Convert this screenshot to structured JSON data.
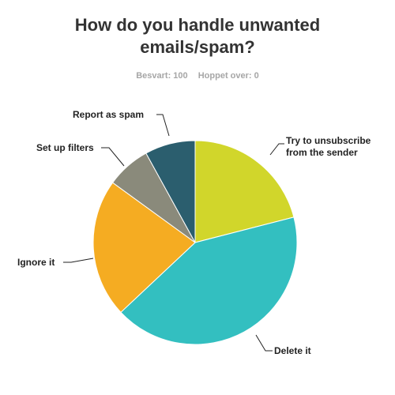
{
  "header": {
    "title": "How do you handle unwanted emails/spam?",
    "answered_label": "Besvart: 100",
    "skipped_label": "Hoppet over: 0"
  },
  "chart_data": {
    "type": "pie",
    "title": "How do you handle unwanted emails/spam?",
    "start": "12 o'clock, clockwise",
    "slices": [
      {
        "label": "Try to unsubscribe from the sender",
        "value": 21,
        "color": "#d1d62b"
      },
      {
        "label": "Delete it",
        "value": 42,
        "color": "#33bfc0"
      },
      {
        "label": "Ignore it",
        "value": 22,
        "color": "#f5ac22"
      },
      {
        "label": "Set up filters",
        "value": 7,
        "color": "#8a8a7b"
      },
      {
        "label": "Report as spam",
        "value": 8,
        "color": "#2b5e6e"
      }
    ]
  }
}
